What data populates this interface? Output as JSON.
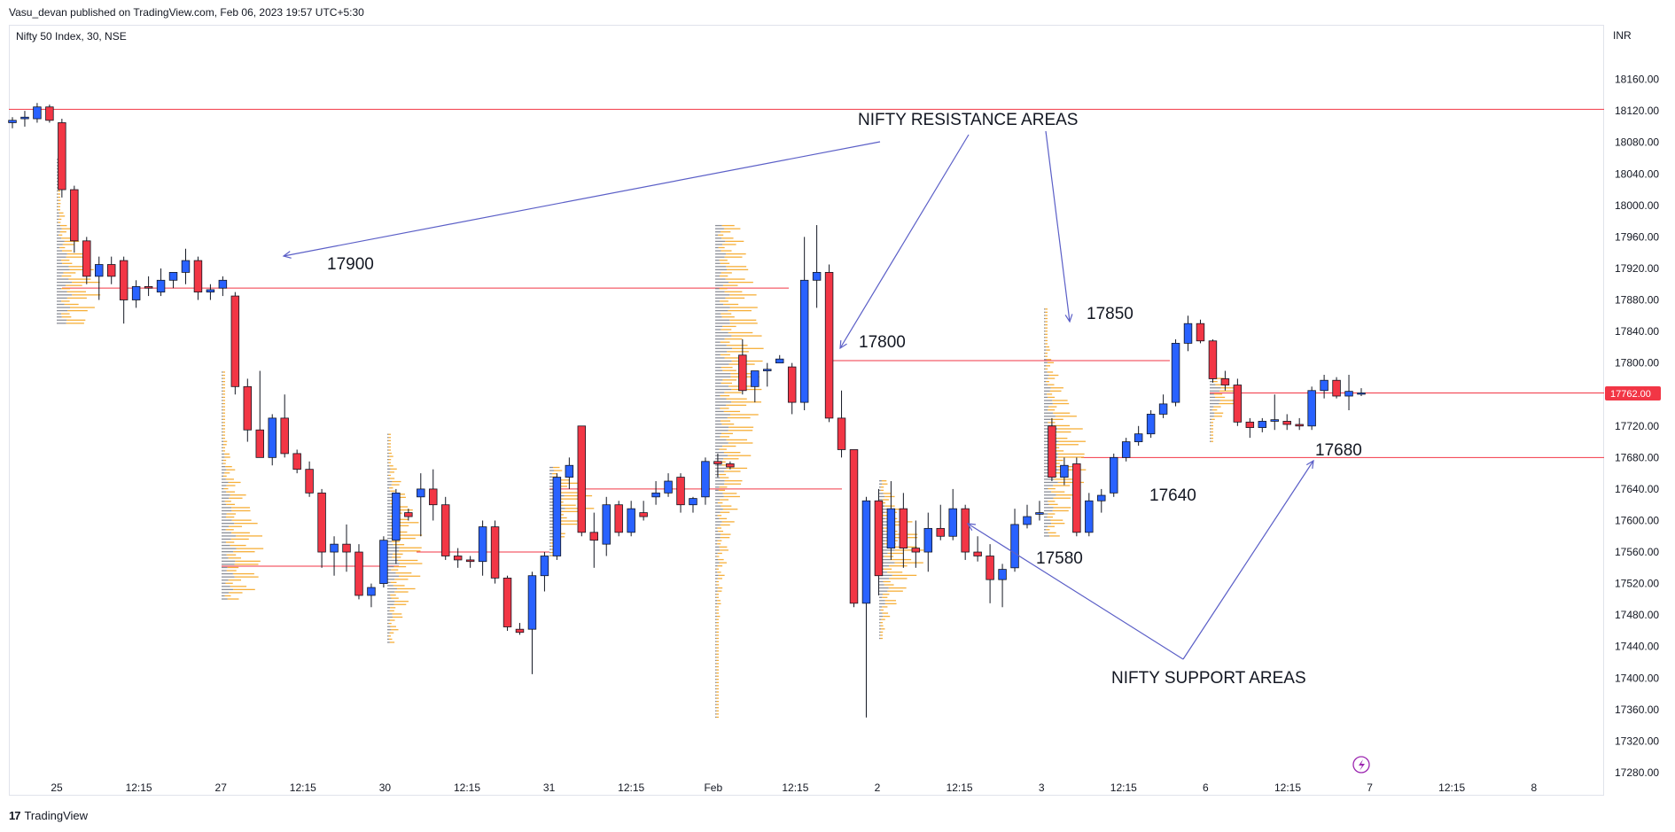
{
  "header": {
    "published": "Vasu_devan published on TradingView.com, Feb 06, 2023 19:57 UTC+5:30",
    "symbol": "Nifty 50 Index, 30, NSE",
    "currency": "INR"
  },
  "footer": {
    "brand_glyph": "17",
    "brand": "TradingView"
  },
  "colors": {
    "up": "#2962ff",
    "down": "#f23645",
    "level": "#f23645",
    "annotation": "#5b5fc7",
    "profile_vol": "#f5a623",
    "profile_gray": "#787b86"
  },
  "chart_data": {
    "type": "candlestick",
    "ylim": [
      17280,
      18200
    ],
    "y_ticks": [
      "18160.00",
      "18120.00",
      "18080.00",
      "18040.00",
      "18000.00",
      "17960.00",
      "17920.00",
      "17880.00",
      "17840.00",
      "17800.00",
      "17760.00",
      "17720.00",
      "17680.00",
      "17640.00",
      "17600.00",
      "17560.00",
      "17520.00",
      "17480.00",
      "17440.00",
      "17400.00",
      "17360.00",
      "17320.00",
      "17280.00"
    ],
    "x_ticks": [
      "25",
      "12:15",
      "27",
      "12:15",
      "30",
      "12:15",
      "31",
      "12:15",
      "Feb",
      "12:15",
      "2",
      "12:15",
      "3",
      "12:15",
      "6",
      "12:15",
      "7",
      "12:15",
      "8"
    ],
    "last_price": "17762.00",
    "horizontal_levels": [
      18122,
      17895,
      17803,
      17680,
      17640,
      17542,
      17560,
      17762
    ],
    "annotations": {
      "resistance": "NIFTY RESISTANCE AREAS",
      "support": "NIFTY SUPPORT AREAS",
      "level_17900": "17900",
      "level_17800": "17800",
      "level_17850": "17850",
      "level_17680": "17680",
      "level_17640": "17640",
      "level_17580": "17580"
    },
    "candles": [
      {
        "o": 18105,
        "h": 18112,
        "l": 18098,
        "c": 18108
      },
      {
        "o": 18110,
        "h": 18120,
        "l": 18100,
        "c": 18112
      },
      {
        "o": 18110,
        "h": 18130,
        "l": 18105,
        "c": 18125
      },
      {
        "o": 18125,
        "h": 18128,
        "l": 18105,
        "c": 18108
      },
      {
        "o": 18105,
        "h": 18110,
        "l": 18010,
        "c": 18020
      },
      {
        "o": 18020,
        "h": 18025,
        "l": 17940,
        "c": 17955
      },
      {
        "o": 17955,
        "h": 17960,
        "l": 17900,
        "c": 17910
      },
      {
        "o": 17910,
        "h": 17935,
        "l": 17880,
        "c": 17925
      },
      {
        "o": 17925,
        "h": 17935,
        "l": 17900,
        "c": 17910
      },
      {
        "o": 17930,
        "h": 17935,
        "l": 17850,
        "c": 17880
      },
      {
        "o": 17880,
        "h": 17905,
        "l": 17870,
        "c": 17897
      },
      {
        "o": 17897,
        "h": 17910,
        "l": 17885,
        "c": 17895
      },
      {
        "o": 17890,
        "h": 17920,
        "l": 17885,
        "c": 17905
      },
      {
        "o": 17905,
        "h": 17915,
        "l": 17895,
        "c": 17915
      },
      {
        "o": 17915,
        "h": 17945,
        "l": 17900,
        "c": 17930
      },
      {
        "o": 17930,
        "h": 17935,
        "l": 17880,
        "c": 17890
      },
      {
        "o": 17890,
        "h": 17900,
        "l": 17880,
        "c": 17893
      },
      {
        "o": 17895,
        "h": 17910,
        "l": 17885,
        "c": 17905
      },
      {
        "o": 17885,
        "h": 17890,
        "l": 17760,
        "c": 17770
      },
      {
        "o": 17770,
        "h": 17780,
        "l": 17700,
        "c": 17715
      },
      {
        "o": 17715,
        "h": 17790,
        "l": 17680,
        "c": 17680
      },
      {
        "o": 17680,
        "h": 17735,
        "l": 17670,
        "c": 17730
      },
      {
        "o": 17730,
        "h": 17760,
        "l": 17680,
        "c": 17685
      },
      {
        "o": 17685,
        "h": 17690,
        "l": 17660,
        "c": 17665
      },
      {
        "o": 17665,
        "h": 17675,
        "l": 17630,
        "c": 17635
      },
      {
        "o": 17635,
        "h": 17640,
        "l": 17540,
        "c": 17560
      },
      {
        "o": 17560,
        "h": 17580,
        "l": 17530,
        "c": 17570
      },
      {
        "o": 17570,
        "h": 17595,
        "l": 17535,
        "c": 17560
      },
      {
        "o": 17560,
        "h": 17570,
        "l": 17500,
        "c": 17505
      },
      {
        "o": 17505,
        "h": 17520,
        "l": 17490,
        "c": 17515
      },
      {
        "o": 17520,
        "h": 17580,
        "l": 17515,
        "c": 17575
      },
      {
        "o": 17575,
        "h": 17640,
        "l": 17545,
        "c": 17635
      },
      {
        "o": 17610,
        "h": 17615,
        "l": 17600,
        "c": 17605
      },
      {
        "o": 17630,
        "h": 17660,
        "l": 17580,
        "c": 17640
      },
      {
        "o": 17640,
        "h": 17665,
        "l": 17600,
        "c": 17620
      },
      {
        "o": 17620,
        "h": 17630,
        "l": 17550,
        "c": 17555
      },
      {
        "o": 17555,
        "h": 17565,
        "l": 17540,
        "c": 17550
      },
      {
        "o": 17550,
        "h": 17555,
        "l": 17540,
        "c": 17548
      },
      {
        "o": 17548,
        "h": 17600,
        "l": 17530,
        "c": 17592
      },
      {
        "o": 17592,
        "h": 17600,
        "l": 17520,
        "c": 17527
      },
      {
        "o": 17527,
        "h": 17530,
        "l": 17460,
        "c": 17465
      },
      {
        "o": 17462,
        "h": 17470,
        "l": 17455,
        "c": 17458
      },
      {
        "o": 17462,
        "h": 17535,
        "l": 17405,
        "c": 17530
      },
      {
        "o": 17530,
        "h": 17560,
        "l": 17510,
        "c": 17555
      },
      {
        "o": 17555,
        "h": 17660,
        "l": 17550,
        "c": 17655
      },
      {
        "o": 17655,
        "h": 17680,
        "l": 17640,
        "c": 17670
      },
      {
        "o": 17720,
        "h": 17720,
        "l": 17580,
        "c": 17585
      },
      {
        "o": 17585,
        "h": 17610,
        "l": 17540,
        "c": 17575
      },
      {
        "o": 17570,
        "h": 17630,
        "l": 17555,
        "c": 17620
      },
      {
        "o": 17620,
        "h": 17625,
        "l": 17580,
        "c": 17585
      },
      {
        "o": 17585,
        "h": 17625,
        "l": 17580,
        "c": 17615
      },
      {
        "o": 17610,
        "h": 17625,
        "l": 17600,
        "c": 17605
      },
      {
        "o": 17630,
        "h": 17650,
        "l": 17620,
        "c": 17635
      },
      {
        "o": 17635,
        "h": 17660,
        "l": 17630,
        "c": 17650
      },
      {
        "o": 17655,
        "h": 17660,
        "l": 17610,
        "c": 17620
      },
      {
        "o": 17620,
        "h": 17630,
        "l": 17610,
        "c": 17628
      },
      {
        "o": 17630,
        "h": 17680,
        "l": 17620,
        "c": 17675
      },
      {
        "o": 17675,
        "h": 17685,
        "l": 17655,
        "c": 17672
      },
      {
        "o": 17672,
        "h": 17675,
        "l": 17665,
        "c": 17668
      },
      {
        "o": 17810,
        "h": 17830,
        "l": 17760,
        "c": 17765
      },
      {
        "o": 17770,
        "h": 17790,
        "l": 17750,
        "c": 17790
      },
      {
        "o": 17790,
        "h": 17800,
        "l": 17770,
        "c": 17792
      },
      {
        "o": 17800,
        "h": 17810,
        "l": 17800,
        "c": 17805
      },
      {
        "o": 17795,
        "h": 17800,
        "l": 17735,
        "c": 17750
      },
      {
        "o": 17750,
        "h": 17960,
        "l": 17740,
        "c": 17905
      },
      {
        "o": 17905,
        "h": 17975,
        "l": 17870,
        "c": 17915
      },
      {
        "o": 17915,
        "h": 17925,
        "l": 17725,
        "c": 17730
      },
      {
        "o": 17730,
        "h": 17765,
        "l": 17680,
        "c": 17690
      },
      {
        "o": 17690,
        "h": 17690,
        "l": 17490,
        "c": 17495
      },
      {
        "o": 17495,
        "h": 17630,
        "l": 17350,
        "c": 17625
      },
      {
        "o": 17625,
        "h": 17640,
        "l": 17505,
        "c": 17530
      },
      {
        "o": 17565,
        "h": 17650,
        "l": 17550,
        "c": 17615
      },
      {
        "o": 17615,
        "h": 17635,
        "l": 17540,
        "c": 17565
      },
      {
        "o": 17565,
        "h": 17600,
        "l": 17540,
        "c": 17560
      },
      {
        "o": 17560,
        "h": 17610,
        "l": 17535,
        "c": 17590
      },
      {
        "o": 17590,
        "h": 17620,
        "l": 17575,
        "c": 17580
      },
      {
        "o": 17580,
        "h": 17640,
        "l": 17575,
        "c": 17615
      },
      {
        "o": 17615,
        "h": 17620,
        "l": 17550,
        "c": 17560
      },
      {
        "o": 17560,
        "h": 17580,
        "l": 17548,
        "c": 17555
      },
      {
        "o": 17555,
        "h": 17570,
        "l": 17495,
        "c": 17525
      },
      {
        "o": 17525,
        "h": 17545,
        "l": 17490,
        "c": 17538
      },
      {
        "o": 17540,
        "h": 17615,
        "l": 17535,
        "c": 17595
      },
      {
        "o": 17595,
        "h": 17620,
        "l": 17590,
        "c": 17605
      },
      {
        "o": 17608,
        "h": 17625,
        "l": 17600,
        "c": 17610
      },
      {
        "o": 17720,
        "h": 17730,
        "l": 17650,
        "c": 17655
      },
      {
        "o": 17655,
        "h": 17680,
        "l": 17645,
        "c": 17670
      },
      {
        "o": 17672,
        "h": 17680,
        "l": 17580,
        "c": 17585
      },
      {
        "o": 17585,
        "h": 17635,
        "l": 17580,
        "c": 17625
      },
      {
        "o": 17625,
        "h": 17640,
        "l": 17610,
        "c": 17632
      },
      {
        "o": 17635,
        "h": 17685,
        "l": 17630,
        "c": 17680
      },
      {
        "o": 17680,
        "h": 17705,
        "l": 17675,
        "c": 17700
      },
      {
        "o": 17700,
        "h": 17720,
        "l": 17695,
        "c": 17710
      },
      {
        "o": 17710,
        "h": 17740,
        "l": 17705,
        "c": 17735
      },
      {
        "o": 17735,
        "h": 17760,
        "l": 17730,
        "c": 17748
      },
      {
        "o": 17750,
        "h": 17830,
        "l": 17745,
        "c": 17825
      },
      {
        "o": 17825,
        "h": 17860,
        "l": 17815,
        "c": 17850
      },
      {
        "o": 17850,
        "h": 17855,
        "l": 17825,
        "c": 17828
      },
      {
        "o": 17828,
        "h": 17830,
        "l": 17775,
        "c": 17780
      },
      {
        "o": 17780,
        "h": 17790,
        "l": 17765,
        "c": 17772
      },
      {
        "o": 17772,
        "h": 17780,
        "l": 17720,
        "c": 17725
      },
      {
        "o": 17725,
        "h": 17730,
        "l": 17705,
        "c": 17718
      },
      {
        "o": 17718,
        "h": 17730,
        "l": 17712,
        "c": 17726
      },
      {
        "o": 17726,
        "h": 17760,
        "l": 17715,
        "c": 17728
      },
      {
        "o": 17726,
        "h": 17735,
        "l": 17715,
        "c": 17722
      },
      {
        "o": 17722,
        "h": 17730,
        "l": 17715,
        "c": 17720
      },
      {
        "o": 17720,
        "h": 17770,
        "l": 17715,
        "c": 17765
      },
      {
        "o": 17765,
        "h": 17785,
        "l": 17755,
        "c": 17778
      },
      {
        "o": 17778,
        "h": 17782,
        "l": 17755,
        "c": 17758
      },
      {
        "o": 17758,
        "h": 17785,
        "l": 17740,
        "c": 17764
      },
      {
        "o": 17762,
        "h": 17768,
        "l": 17758,
        "c": 17762
      }
    ]
  }
}
